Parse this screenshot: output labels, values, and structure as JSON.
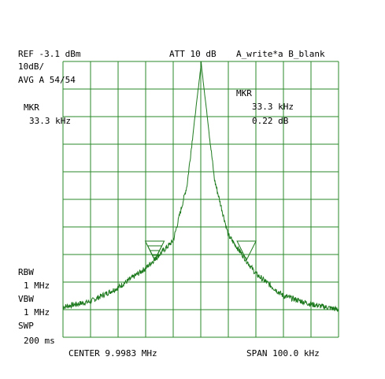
{
  "header": {
    "ref": "REF -3.1 dBm",
    "att": "ATT 10 dB",
    "traces": "A_write*a B_blank",
    "scale": "10dB/",
    "avg": "AVG A 54/54"
  },
  "marker_left": {
    "label": "MKR",
    "freq": "33.3 kHz"
  },
  "marker_right": {
    "label": "MKR",
    "freq": "33.3  kHz",
    "level": "0.22   dB"
  },
  "settings": {
    "rbw_label": "RBW",
    "rbw_value": "1 MHz",
    "vbw_label": "VBW",
    "vbw_value": "1 MHz",
    "swp_label": "SWP",
    "swp_value": "200 ms"
  },
  "footer": {
    "center": "CENTER 9.9983 MHz",
    "span": "SPAN 100.0 kHz"
  },
  "colors": {
    "grid": "#2a8a2a",
    "trace": "#1e7a1e",
    "text": "#000000"
  },
  "chart_data": {
    "type": "line",
    "x_unit": "MHz offset from center",
    "y_unit": "dB relative to reference",
    "xlim": [
      -0.05,
      0.05
    ],
    "ylim": [
      -100,
      0
    ],
    "x_divisions": 10,
    "y_divisions": 10,
    "grid": true,
    "series": [
      {
        "x": [
          -0.05,
          -0.04,
          -0.03,
          -0.02,
          -0.01,
          -0.005,
          0.0,
          0.00015,
          0.0003,
          0.005,
          0.01,
          0.02,
          0.03,
          0.04,
          0.05
        ],
        "y": [
          -89,
          -87,
          -82,
          -75,
          -65,
          -45,
          -2,
          0,
          -2,
          -43,
          -63,
          -77,
          -85,
          -88,
          -90
        ]
      }
    ],
    "markers": [
      {
        "x": -0.0167,
        "y": -72,
        "style": "filled-triangle"
      },
      {
        "x": 0.0166,
        "y": -72,
        "style": "open-triangle"
      }
    ]
  }
}
